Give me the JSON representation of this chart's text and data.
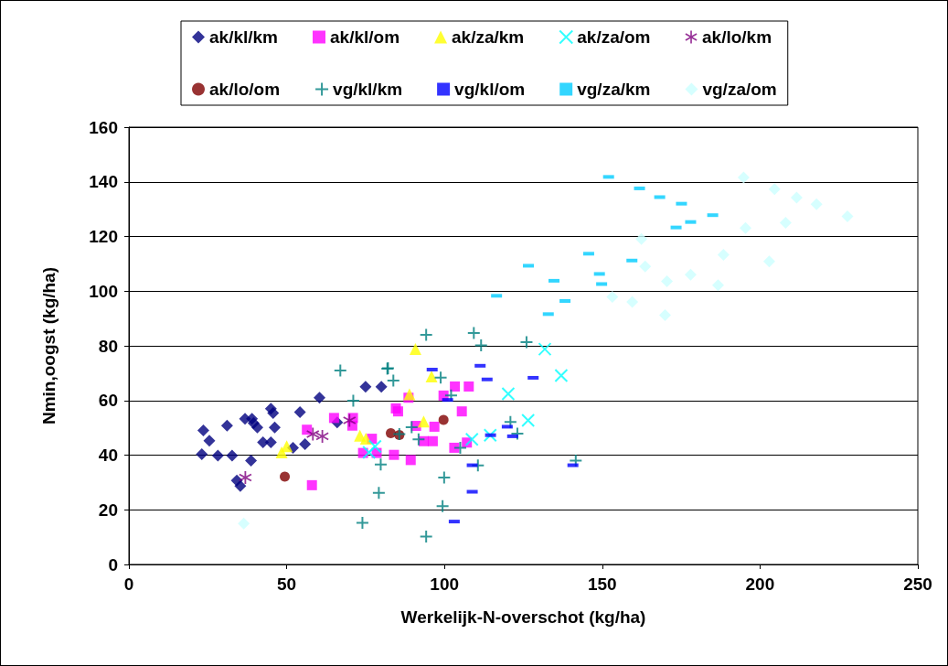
{
  "chart_data": {
    "type": "scatter",
    "xlabel": "Werkelijk-N-overschot (kg/ha)",
    "ylabel": "Nmin,oogst (kg/ha)",
    "xlim": [
      0,
      250
    ],
    "xticks": [
      0,
      50,
      100,
      150,
      200,
      250
    ],
    "ylim": [
      0,
      160
    ],
    "yticks": [
      0,
      20,
      40,
      60,
      80,
      100,
      120,
      140,
      160
    ],
    "grid": "y",
    "legend": "top",
    "series": [
      {
        "name": "ak/kl/km",
        "color": "#000080",
        "marker": "diamond",
        "x": [
          23.6,
          25.5,
          23.1,
          28.2,
          31.1,
          32.7,
          34.2,
          35.3,
          36.8,
          38.7,
          39,
          39.5,
          40.7,
          42.5,
          45,
          45,
          45.7,
          46.2,
          54.2,
          52,
          55.8,
          60.4,
          66,
          75,
          80
        ],
        "values": [
          49,
          45.3,
          40.3,
          39.8,
          50.8,
          39.8,
          30.7,
          28.7,
          53.3,
          38,
          53.3,
          51.7,
          50.1,
          44.7,
          44.7,
          57,
          55.4,
          50.1,
          55.7,
          42.7,
          44,
          61,
          52,
          65,
          65
        ]
      },
      {
        "name": "ak/kl/om",
        "color": "#ff00ff",
        "marker": "square",
        "x": [
          56.4,
          65,
          71,
          70.8,
          58,
          74.2,
          77,
          78.5,
          84,
          89.3,
          84.6,
          85.3,
          88.6,
          91,
          96.8,
          93.4,
          96.3,
          103.3,
          107.7,
          99.7,
          105.5,
          103.1,
          107.1
        ],
        "values": [
          49.3,
          53.6,
          53.6,
          50.8,
          29,
          40.8,
          46,
          40.8,
          40.1,
          38.2,
          57.1,
          56,
          61,
          50.7,
          50.4,
          45.1,
          45.1,
          65.1,
          65.1,
          61.8,
          56,
          42.7,
          44.6
        ]
      },
      {
        "name": "ak/za/km",
        "color": "#ffff00",
        "marker": "triangle",
        "x": [
          48.4,
          50,
          73.2,
          75.1,
          90.8,
          95.9,
          88.9,
          93.4
        ],
        "values": [
          41,
          43.3,
          47.1,
          46,
          78.8,
          68.8,
          62.3,
          52.3
        ]
      },
      {
        "name": "ak/za/om",
        "color": "#00ffff",
        "marker": "x",
        "x": [
          78,
          76.1,
          131.8,
          137,
          120.2,
          126.5,
          114.5,
          108.7
        ],
        "values": [
          43.2,
          41,
          78.8,
          69.1,
          62.4,
          52.7,
          47.3,
          45.8
        ]
      },
      {
        "name": "ak/lo/km",
        "color": "#800080",
        "marker": "star",
        "x": [
          36.9,
          58.3,
          61.3,
          69.9
        ],
        "values": [
          31.8,
          47.7,
          46.9,
          52.7
        ]
      },
      {
        "name": "ak/lo/om",
        "color": "#800000",
        "marker": "circle",
        "x": [
          49.4,
          83,
          85.7,
          99.7
        ],
        "values": [
          32.1,
          48,
          47.4,
          52.9
        ]
      },
      {
        "name": "vg/kl/km",
        "color": "#008080",
        "marker": "cross",
        "x": [
          67,
          81.9,
          71.1,
          79.8,
          79.2,
          74,
          94.2,
          109.3,
          111.6,
          82.1,
          83.8,
          98.8,
          102.1,
          89.6,
          85.7,
          91.8,
          105,
          99.9,
          110.6,
          99.4,
          94.2,
          126,
          120.9,
          123.1,
          141.6
        ],
        "values": [
          71,
          71.6,
          59.9,
          36.6,
          26.2,
          15.2,
          84,
          84.7,
          80.2,
          71.8,
          67.3,
          68.4,
          61.8,
          50.2,
          47.7,
          45.8,
          42.7,
          31.8,
          36.2,
          21.3,
          10.2,
          81.3,
          52.1,
          47.9,
          38
        ]
      },
      {
        "name": "vg/kl/om",
        "color": "#0000ff",
        "marker": "square",
        "x": [
          96.1,
          111.3,
          113.5,
          101,
          108.8,
          108.8,
          103.1,
          114.6,
          128.1,
          119.9,
          121.6,
          140.7
        ],
        "values": [
          71.3,
          72.7,
          67.7,
          60.2,
          36.3,
          26.6,
          15.7,
          47.3,
          68.3,
          50.4,
          46.9,
          36.3
        ]
      },
      {
        "name": "vg/za/km",
        "color": "#00ccff",
        "marker": "square",
        "x": [
          152,
          161.8,
          168.2,
          175.1,
          185,
          178,
          173.4,
          145.7,
          126.6,
          159.4,
          149.1,
          149.8,
          134.7,
          138.2,
          132.9,
          116.5
        ],
        "values": [
          141.8,
          137.6,
          134.4,
          132,
          127.8,
          125.3,
          123.3,
          113.7,
          109.3,
          111.2,
          106.3,
          102.6,
          103.8,
          96.4,
          91.6,
          98.3
        ]
      },
      {
        "name": "vg/za/om",
        "color": "#ccffff",
        "marker": "diamond",
        "x": [
          194.8,
          195.4,
          162.4,
          188.4,
          163.6,
          178,
          170.5,
          186.7,
          153.2,
          159.5,
          169.9,
          204.6,
          211.6,
          217.9,
          227.7,
          208.1,
          202.9,
          36.4
        ],
        "values": [
          141.6,
          123.1,
          119.1,
          113.3,
          109,
          106,
          103.6,
          102.2,
          97.9,
          96.1,
          91.2,
          137.3,
          134.2,
          131.8,
          127.4,
          125,
          110.9,
          15
        ]
      }
    ]
  }
}
